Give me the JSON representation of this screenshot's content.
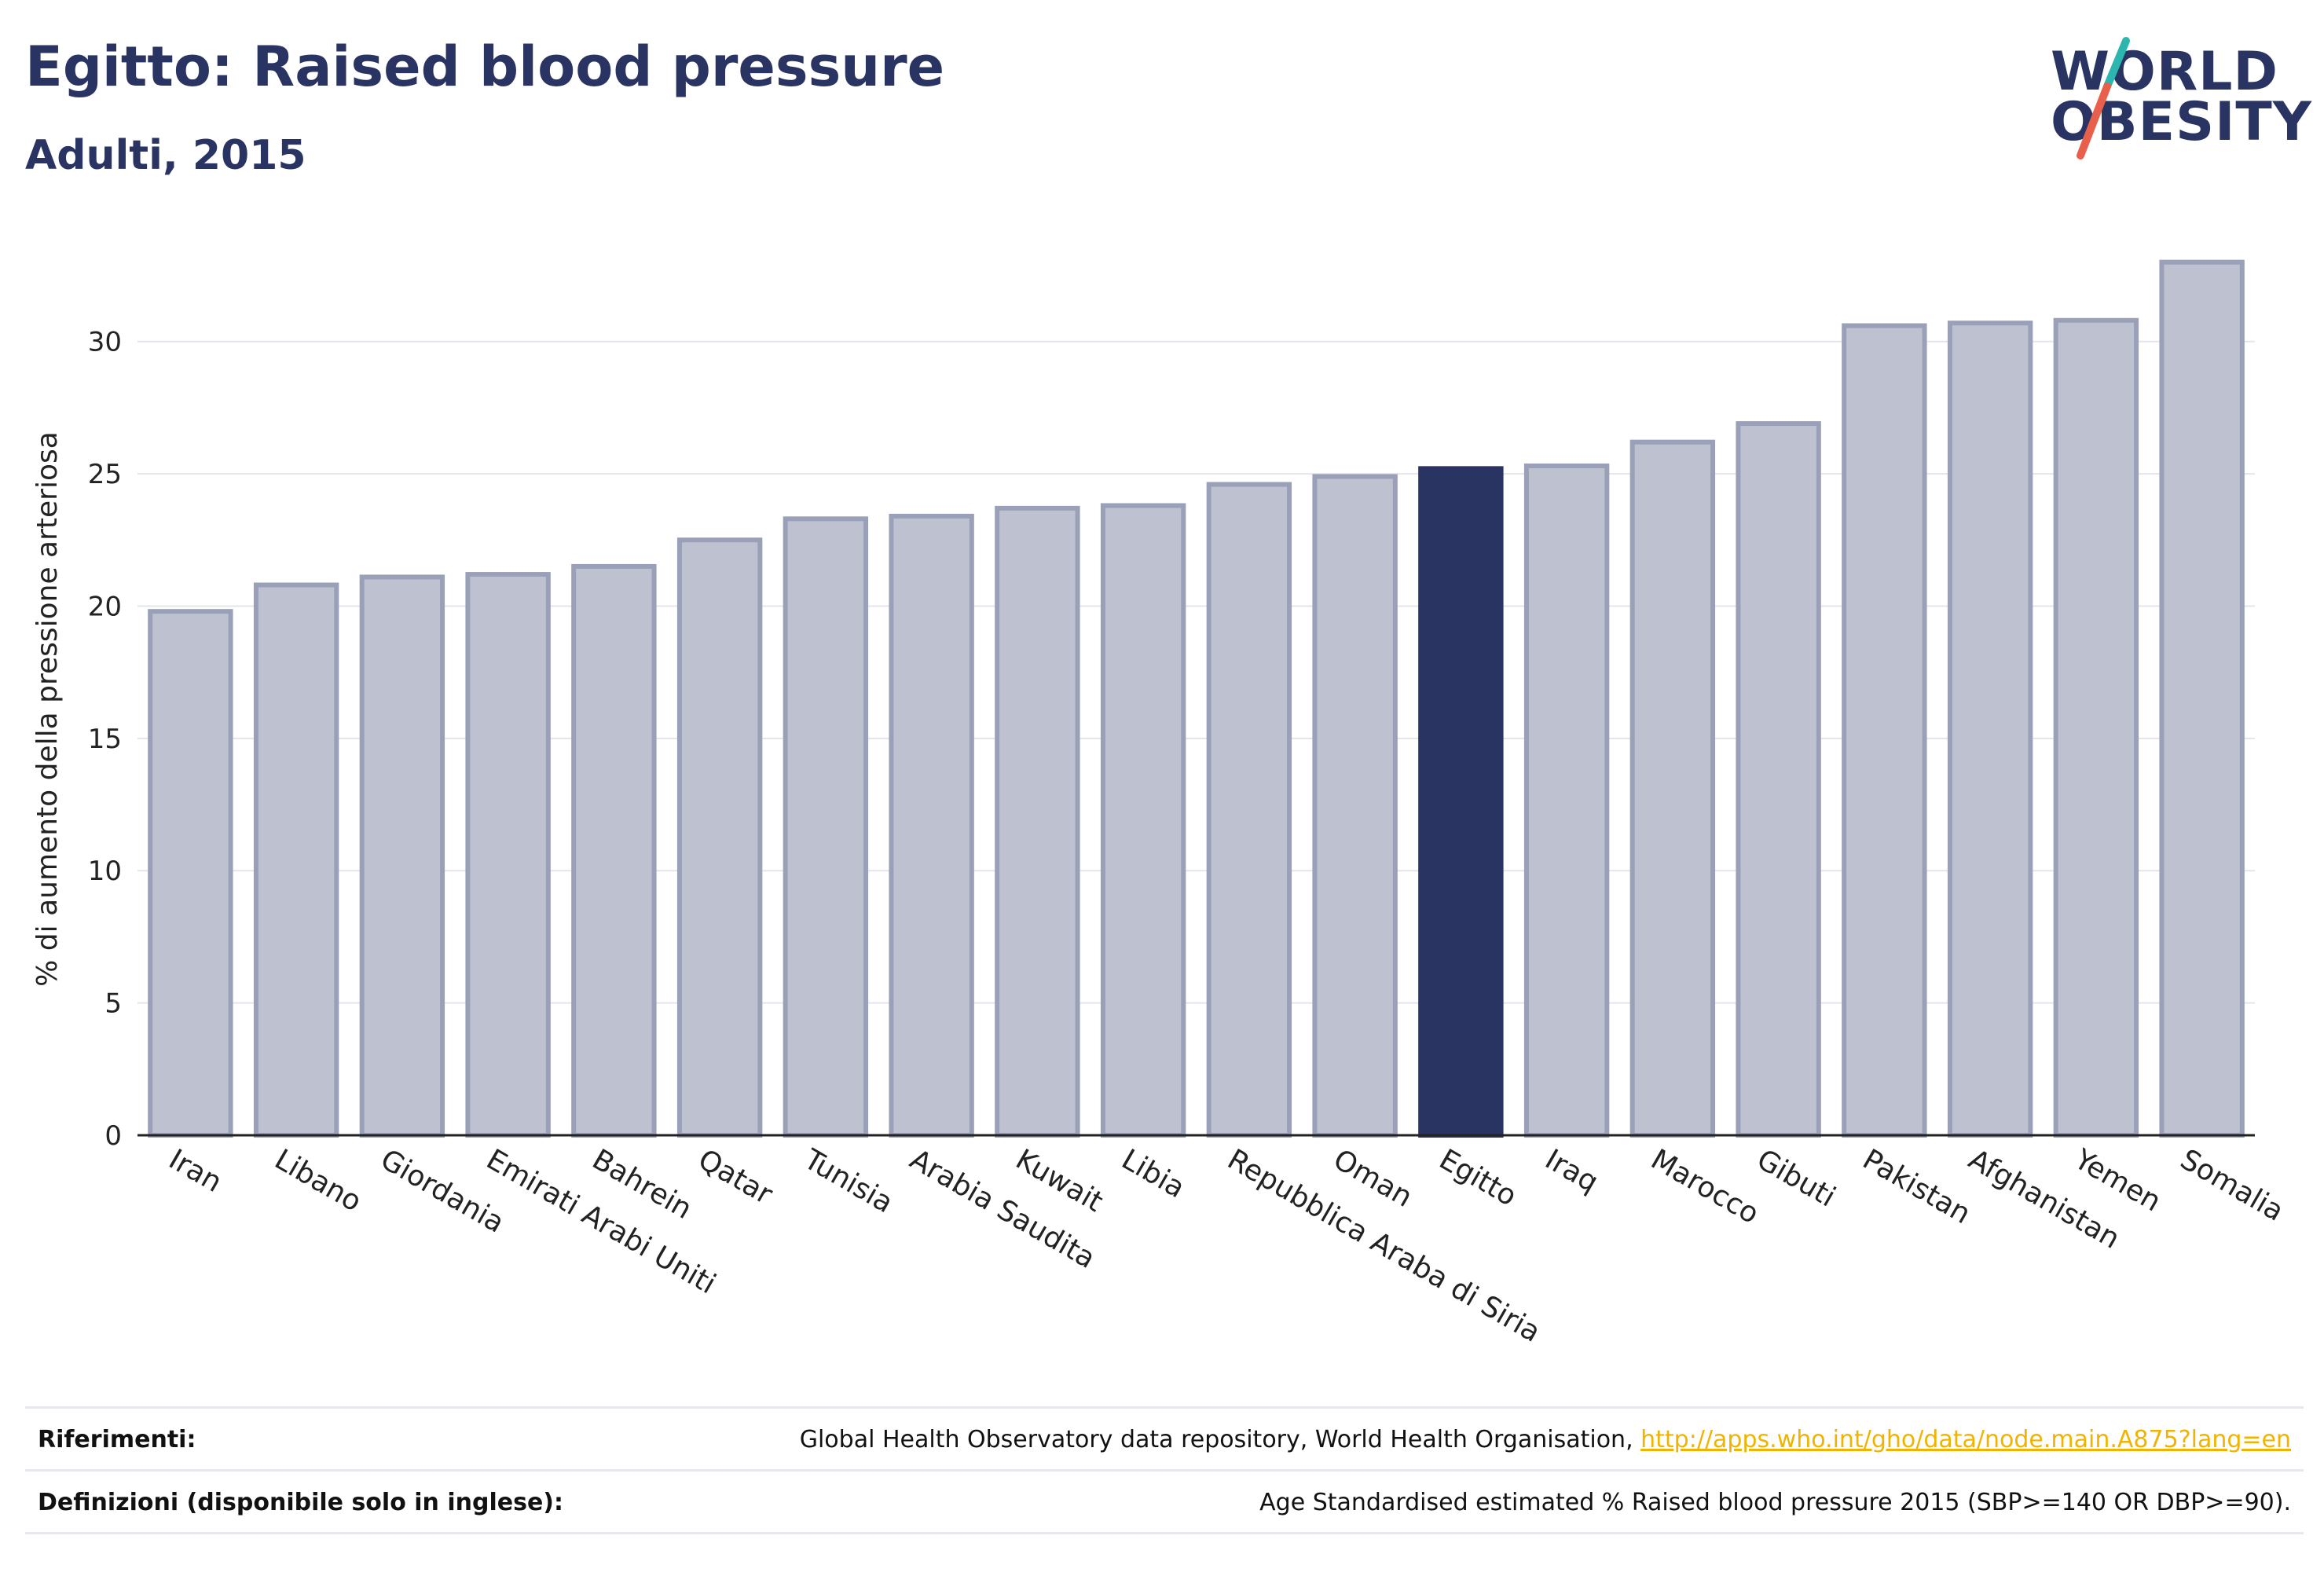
{
  "header": {
    "title": "Egitto: Raised blood pressure",
    "subtitle": "Adulti, 2015"
  },
  "logo": {
    "line1": "WORLD",
    "line2": "OBESITY",
    "accent_teal": "#2bb6b0",
    "accent_red": "#e8604c"
  },
  "colors": {
    "bar": "#bec1d0",
    "bar_border": "#9aa0b8",
    "highlight": "#2a3462",
    "grid": "#e3e5ec",
    "axis": "#222222"
  },
  "chart_data": {
    "type": "bar",
    "title": "Egitto: Raised blood pressure",
    "subtitle": "Adulti, 2015",
    "xlabel": "",
    "ylabel": "% di aumento della pressione arteriosa",
    "ylim": [
      0,
      34
    ],
    "yticks": [
      0,
      5,
      10,
      15,
      20,
      25,
      30
    ],
    "grid": true,
    "highlight": "Egitto",
    "categories": [
      "Iran",
      "Libano",
      "Giordania",
      "Emirati Arabi Uniti",
      "Bahrein",
      "Qatar",
      "Tunisia",
      "Arabia Saudita",
      "Kuwait",
      "Libia",
      "Repubblica Araba di Siria",
      "Oman",
      "Egitto",
      "Iraq",
      "Marocco",
      "Gibuti",
      "Pakistan",
      "Afghanistan",
      "Yemen",
      "Somalia"
    ],
    "values": [
      19.8,
      20.8,
      21.1,
      21.2,
      21.5,
      22.5,
      23.3,
      23.4,
      23.7,
      23.8,
      24.6,
      24.9,
      25.2,
      25.3,
      26.2,
      26.9,
      30.6,
      30.7,
      30.8,
      33.0
    ]
  },
  "footer": {
    "references_label": "Riferimenti:",
    "references_text": "Global Health Observatory data repository, World Health Organisation, ",
    "references_link": "http://apps.who.int/gho/data/node.main.A875?lang=en",
    "definitions_label": "Definizioni (disponibile solo in inglese):",
    "definitions_text": "Age Standardised estimated % Raised blood pressure 2015 (SBP>=140 OR DBP>=90)."
  }
}
